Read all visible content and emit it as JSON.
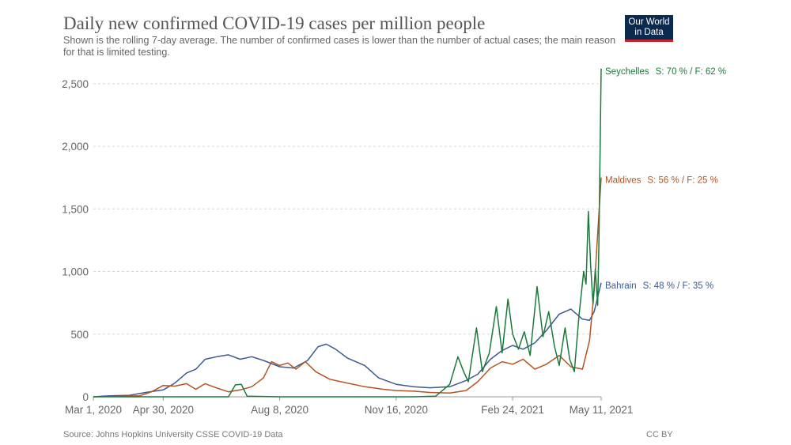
{
  "header": {
    "title": "Daily new confirmed COVID-19 cases per million people",
    "subtitle": "Shown is the rolling 7-day average. The number of confirmed cases is lower than the number of actual cases; the main reason for that is limited testing.",
    "logo_line1": "Our World",
    "logo_line2": "in Data"
  },
  "footer": {
    "source": "Source: Johns Hopkins University CSSE COVID-19 Data",
    "license": "CC BY"
  },
  "chart_data": {
    "type": "line",
    "x_start": "2020-03-01",
    "x_end": "2021-05-11",
    "ylim": [
      0,
      2600
    ],
    "yticks": [
      0,
      500,
      1000,
      1500,
      2000,
      2500
    ],
    "ytick_labels": [
      "0",
      "500",
      "1,000",
      "1,500",
      "2,000",
      "2,500"
    ],
    "xticks": [
      "2020-03-01",
      "2020-04-30",
      "2020-08-08",
      "2020-11-16",
      "2021-02-24",
      "2021-05-11"
    ],
    "xtick_labels": [
      "Mar 1, 2020",
      "Apr 30, 2020",
      "Aug 8, 2020",
      "Nov 16, 2020",
      "Feb 24, 2021",
      "May 11, 2021"
    ],
    "grid": "horizontal-dashed",
    "legend": "right-labels",
    "series": [
      {
        "name": "Bahrain",
        "annotation": "S: 48 % / F: 35 %",
        "color": "#3b5a93",
        "points": [
          [
            "2020-03-01",
            0
          ],
          [
            "2020-03-15",
            8
          ],
          [
            "2020-04-01",
            12
          ],
          [
            "2020-04-15",
            35
          ],
          [
            "2020-04-30",
            55
          ],
          [
            "2020-05-10",
            110
          ],
          [
            "2020-05-20",
            190
          ],
          [
            "2020-05-28",
            220
          ],
          [
            "2020-06-05",
            300
          ],
          [
            "2020-06-15",
            320
          ],
          [
            "2020-06-25",
            335
          ],
          [
            "2020-07-05",
            300
          ],
          [
            "2020-07-15",
            320
          ],
          [
            "2020-07-25",
            290
          ],
          [
            "2020-08-08",
            240
          ],
          [
            "2020-08-20",
            230
          ],
          [
            "2020-09-01",
            290
          ],
          [
            "2020-09-10",
            400
          ],
          [
            "2020-09-17",
            420
          ],
          [
            "2020-09-25",
            380
          ],
          [
            "2020-10-05",
            310
          ],
          [
            "2020-10-20",
            250
          ],
          [
            "2020-11-01",
            150
          ],
          [
            "2020-11-16",
            100
          ],
          [
            "2020-12-01",
            80
          ],
          [
            "2020-12-15",
            72
          ],
          [
            "2021-01-01",
            80
          ],
          [
            "2021-01-15",
            130
          ],
          [
            "2021-01-25",
            180
          ],
          [
            "2021-02-05",
            300
          ],
          [
            "2021-02-15",
            370
          ],
          [
            "2021-02-24",
            410
          ],
          [
            "2021-03-05",
            380
          ],
          [
            "2021-03-15",
            430
          ],
          [
            "2021-03-25",
            530
          ],
          [
            "2021-04-05",
            660
          ],
          [
            "2021-04-15",
            700
          ],
          [
            "2021-04-25",
            620
          ],
          [
            "2021-05-01",
            610
          ],
          [
            "2021-05-05",
            680
          ],
          [
            "2021-05-11",
            910
          ]
        ]
      },
      {
        "name": "Maldives",
        "annotation": "S: 56 % / F: 25 %",
        "color": "#b4541f",
        "points": [
          [
            "2020-03-01",
            0
          ],
          [
            "2020-03-20",
            3
          ],
          [
            "2020-04-10",
            8
          ],
          [
            "2020-04-20",
            40
          ],
          [
            "2020-04-30",
            90
          ],
          [
            "2020-05-10",
            85
          ],
          [
            "2020-05-20",
            105
          ],
          [
            "2020-05-28",
            60
          ],
          [
            "2020-06-05",
            105
          ],
          [
            "2020-06-15",
            70
          ],
          [
            "2020-06-25",
            40
          ],
          [
            "2020-07-05",
            55
          ],
          [
            "2020-07-15",
            80
          ],
          [
            "2020-07-25",
            150
          ],
          [
            "2020-08-01",
            280
          ],
          [
            "2020-08-08",
            250
          ],
          [
            "2020-08-15",
            270
          ],
          [
            "2020-08-22",
            220
          ],
          [
            "2020-08-30",
            280
          ],
          [
            "2020-09-08",
            200
          ],
          [
            "2020-09-20",
            140
          ],
          [
            "2020-10-05",
            110
          ],
          [
            "2020-10-20",
            80
          ],
          [
            "2020-11-05",
            60
          ],
          [
            "2020-11-16",
            50
          ],
          [
            "2020-12-01",
            45
          ],
          [
            "2020-12-15",
            35
          ],
          [
            "2021-01-01",
            30
          ],
          [
            "2021-01-15",
            50
          ],
          [
            "2021-01-25",
            120
          ],
          [
            "2021-02-05",
            230
          ],
          [
            "2021-02-15",
            280
          ],
          [
            "2021-02-24",
            260
          ],
          [
            "2021-03-05",
            300
          ],
          [
            "2021-03-15",
            220
          ],
          [
            "2021-03-25",
            260
          ],
          [
            "2021-04-05",
            330
          ],
          [
            "2021-04-15",
            240
          ],
          [
            "2021-04-25",
            220
          ],
          [
            "2021-05-01",
            450
          ],
          [
            "2021-05-05",
            850
          ],
          [
            "2021-05-11",
            1750
          ]
        ]
      },
      {
        "name": "Seychelles",
        "annotation": "S: 70 % / F: 62 %",
        "color": "#1a7a3a",
        "points": [
          [
            "2020-03-01",
            0
          ],
          [
            "2020-06-25",
            0
          ],
          [
            "2020-07-01",
            95
          ],
          [
            "2020-07-06",
            100
          ],
          [
            "2020-07-11",
            5
          ],
          [
            "2020-08-08",
            0
          ],
          [
            "2020-12-01",
            0
          ],
          [
            "2020-12-20",
            5
          ],
          [
            "2021-01-01",
            100
          ],
          [
            "2021-01-08",
            320
          ],
          [
            "2021-01-13",
            200
          ],
          [
            "2021-01-17",
            120
          ],
          [
            "2021-01-24",
            550
          ],
          [
            "2021-01-29",
            200
          ],
          [
            "2021-02-04",
            350
          ],
          [
            "2021-02-10",
            720
          ],
          [
            "2021-02-15",
            350
          ],
          [
            "2021-02-20",
            780
          ],
          [
            "2021-02-24",
            500
          ],
          [
            "2021-03-01",
            380
          ],
          [
            "2021-03-06",
            520
          ],
          [
            "2021-03-11",
            330
          ],
          [
            "2021-03-17",
            880
          ],
          [
            "2021-03-22",
            480
          ],
          [
            "2021-03-27",
            680
          ],
          [
            "2021-04-01",
            400
          ],
          [
            "2021-04-05",
            250
          ],
          [
            "2021-04-10",
            550
          ],
          [
            "2021-04-14",
            300
          ],
          [
            "2021-04-18",
            200
          ],
          [
            "2021-04-22",
            650
          ],
          [
            "2021-04-26",
            1000
          ],
          [
            "2021-04-28",
            900
          ],
          [
            "2021-04-30",
            1480
          ],
          [
            "2021-05-02",
            1050
          ],
          [
            "2021-05-04",
            740
          ],
          [
            "2021-05-06",
            1020
          ],
          [
            "2021-05-08",
            730
          ],
          [
            "2021-05-09",
            1200
          ],
          [
            "2021-05-11",
            2620
          ]
        ]
      }
    ]
  }
}
